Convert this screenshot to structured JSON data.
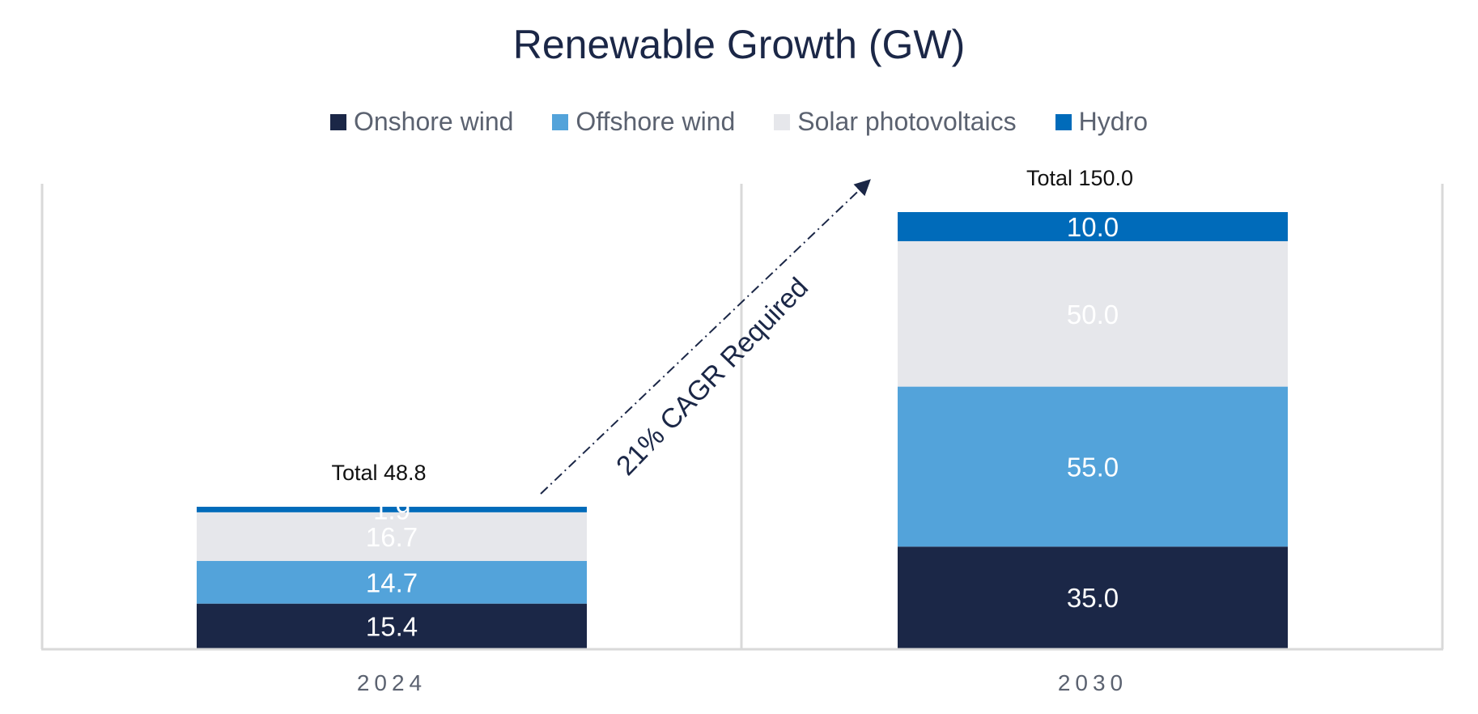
{
  "chart_data": {
    "type": "bar",
    "stacked": true,
    "title": "Renewable Growth (GW)",
    "categories": [
      "2024",
      "2030"
    ],
    "series": [
      {
        "name": "Onshore wind",
        "color": "#1b2747",
        "values": [
          15.4,
          35.0
        ],
        "labels": [
          "15.4",
          "35.0"
        ]
      },
      {
        "name": "Offshore wind",
        "color": "#53a3da",
        "values": [
          14.7,
          55.0
        ],
        "labels": [
          "14.7",
          "55.0"
        ]
      },
      {
        "name": "Solar photovoltaics",
        "color": "#e6e7eb",
        "values": [
          16.7,
          50.0
        ],
        "labels": [
          "16.7",
          "50.0"
        ]
      },
      {
        "name": "Hydro",
        "color": "#006bba",
        "values": [
          1.9,
          10.0
        ],
        "labels": [
          "1.9",
          "10.0"
        ]
      }
    ],
    "totals": [
      {
        "label": "Total 48.8",
        "value": 48.8
      },
      {
        "label": "Total 150.0",
        "value": 150.0
      }
    ],
    "annotation": "21% CAGR Required",
    "ylim": [
      0,
      150
    ],
    "legend_position": "top",
    "grid": false
  }
}
